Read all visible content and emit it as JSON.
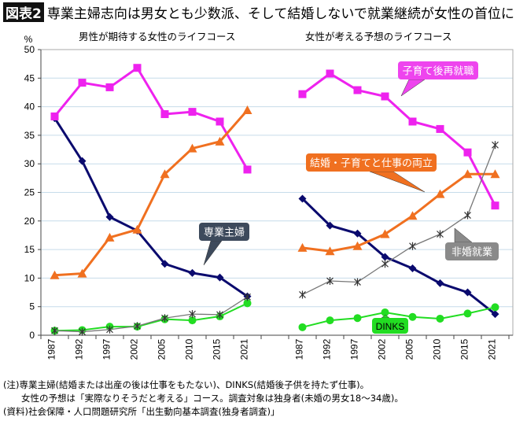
{
  "title": {
    "badge": "図表2",
    "text": "専業主婦志向は男女とも少数派、そして結婚しないで就業継続が女性の首位に"
  },
  "chart_data": [
    {
      "type": "line",
      "title": "男性が期待する女性のライフコース",
      "ylabel": "%",
      "ylim": [
        0,
        50
      ],
      "yticks": [
        0,
        5,
        10,
        15,
        20,
        25,
        30,
        35,
        40,
        45,
        50
      ],
      "grid": true,
      "categories": [
        "1987",
        "1992",
        "1997",
        "2002",
        "2005",
        "2010",
        "2015",
        "2021"
      ],
      "series": [
        {
          "name": "専業主婦",
          "color": "#0a0a6e",
          "marker": "diamond",
          "values": [
            38.0,
            30.5,
            20.7,
            18.3,
            12.5,
            10.9,
            10.1,
            6.8
          ]
        },
        {
          "name": "子育て後再就職",
          "color": "#ee22ee",
          "marker": "square",
          "values": [
            38.3,
            44.2,
            43.4,
            46.8,
            38.7,
            39.1,
            37.4,
            29.0
          ]
        },
        {
          "name": "結婚・子育てと仕事の両立",
          "color": "#f07020",
          "marker": "triangle",
          "values": [
            10.5,
            10.8,
            17.1,
            18.5,
            28.2,
            32.7,
            33.9,
            39.4
          ]
        },
        {
          "name": "DINKS",
          "color": "#22dd22",
          "marker": "circle",
          "values": [
            0.8,
            0.9,
            1.5,
            1.5,
            2.8,
            2.6,
            3.3,
            5.6
          ]
        },
        {
          "name": "非婚就業",
          "color": "#777777",
          "marker": "star",
          "values": [
            0.8,
            0.6,
            1.0,
            1.6,
            3.0,
            3.7,
            3.6,
            6.7
          ]
        }
      ]
    },
    {
      "type": "line",
      "title": "女性が考える予想のライフコース",
      "ylim": [
        0,
        50
      ],
      "grid": true,
      "categories": [
        "1987",
        "1992",
        "1997",
        "2002",
        "2005",
        "2010",
        "2015",
        "2021"
      ],
      "series": [
        {
          "name": "専業主婦",
          "color": "#0a0a6e",
          "marker": "diamond",
          "values": [
            23.9,
            19.2,
            17.8,
            13.7,
            11.7,
            9.1,
            7.5,
            3.7
          ]
        },
        {
          "name": "子育て後再就職",
          "color": "#ee22ee",
          "marker": "square",
          "values": [
            42.2,
            45.8,
            42.9,
            41.8,
            37.4,
            36.1,
            32.0,
            22.7
          ]
        },
        {
          "name": "結婚・子育てと仕事の両立",
          "color": "#f07020",
          "marker": "triangle",
          "values": [
            15.3,
            14.7,
            15.6,
            17.7,
            20.9,
            24.7,
            28.2,
            28.2
          ]
        },
        {
          "name": "DINKS",
          "color": "#22dd22",
          "marker": "circle",
          "values": [
            1.4,
            2.6,
            3.0,
            4.0,
            3.2,
            2.9,
            3.8,
            4.9
          ]
        },
        {
          "name": "非婚就業",
          "color": "#777777",
          "marker": "star",
          "values": [
            7.1,
            9.5,
            9.3,
            12.5,
            15.6,
            17.7,
            21.0,
            33.3
          ]
        }
      ]
    }
  ],
  "callouts": {
    "housewife": "専業主婦",
    "reemploy": "子育て後再就職",
    "both": "結婚・子育てと仕事の両立",
    "unmarried": "非婚就業",
    "dinks": "DINKS"
  },
  "notes": [
    "(注)専業主婦(結婚または出産の後は仕事をもたない)、DINKS(結婚後子供を持たず仕事)。",
    "　　女性の予想は「実際なりそうだと考える」コース。調査対象は独身者(未婚の男女18〜34歳)。",
    "(資料)社会保障・人口問題研究所「出生動向基本調査(独身者調査)」"
  ]
}
